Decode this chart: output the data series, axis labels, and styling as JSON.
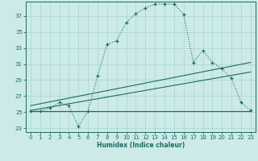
{
  "xlabel": "Humidex (Indice chaleur)",
  "bg_color": "#cceae8",
  "grid_color": "#aad4d0",
  "line_color": "#1a6b65",
  "xlim": [
    -0.5,
    23.5
  ],
  "ylim": [
    22.5,
    38.8
  ],
  "xticks": [
    0,
    1,
    2,
    3,
    4,
    5,
    6,
    7,
    8,
    9,
    10,
    11,
    12,
    13,
    14,
    15,
    16,
    17,
    18,
    19,
    20,
    21,
    22,
    23
  ],
  "yticks": [
    23,
    25,
    27,
    29,
    31,
    33,
    35,
    37
  ],
  "curve_main_x": [
    0,
    1,
    2,
    3,
    4,
    5,
    6,
    7,
    8,
    9,
    10,
    11,
    12,
    13,
    14,
    15,
    16,
    17,
    18,
    19,
    20,
    21,
    22,
    23
  ],
  "curve_main_y": [
    25.1,
    25.1,
    25.5,
    26.2,
    25.8,
    23.2,
    25.1,
    29.5,
    33.5,
    33.9,
    36.2,
    37.3,
    38.0,
    38.5,
    38.5,
    38.5,
    37.2,
    31.2,
    32.7,
    31.2,
    30.4,
    29.2,
    26.2,
    25.2
  ],
  "curve_flat_x": [
    0,
    1,
    2,
    3,
    4,
    5,
    6,
    7,
    8,
    9,
    10,
    11,
    12,
    13,
    14,
    15,
    16,
    17,
    18,
    19,
    20,
    21,
    22,
    23
  ],
  "curve_flat_y": [
    25.1,
    25.1,
    25.1,
    25.1,
    25.1,
    25.1,
    25.1,
    25.1,
    25.1,
    25.1,
    25.1,
    25.1,
    25.1,
    25.1,
    25.1,
    25.1,
    25.1,
    25.1,
    25.1,
    25.1,
    25.1,
    25.1,
    25.1,
    25.1
  ],
  "trend1_x": [
    0,
    23
  ],
  "trend1_y": [
    25.2,
    30.0
  ],
  "trend2_x": [
    0,
    23
  ],
  "trend2_y": [
    25.8,
    31.2
  ]
}
